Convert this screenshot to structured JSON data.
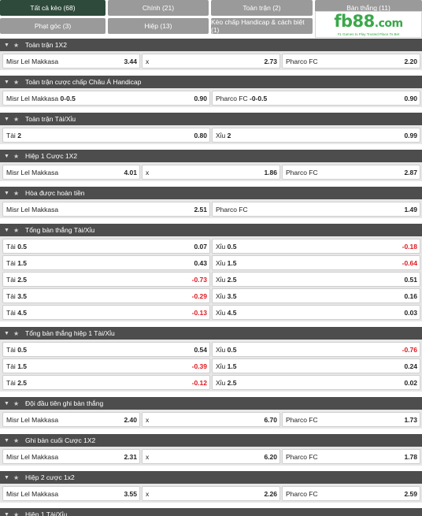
{
  "tabs": {
    "row1": [
      "Tất cả kèo (68)",
      "Chính (21)",
      "Toàn trận (2)",
      "Bàn thắng (11)"
    ],
    "row2": [
      "Phạt góc (3)",
      "Hiệp (13)",
      "Kèo chấp Handicap & cách biệt (1)"
    ]
  },
  "logo": {
    "text": "fb88",
    "suffix": ".com",
    "tagline": "#1 Games to Play  Trusted Place To Bet"
  },
  "markets": [
    {
      "title": "Toàn trận 1X2",
      "rows": [
        [
          {
            "name": "Misr Lel Makkasa",
            "odds": "3.44"
          },
          {
            "name": "x",
            "odds": "2.73"
          },
          {
            "name": "Pharco FC",
            "odds": "2.20"
          }
        ]
      ]
    },
    {
      "title": "Toàn trận cược chấp Châu Á Handicap",
      "rows": [
        [
          {
            "name": "Misr Lel Makkasa",
            "line": "0-0.5",
            "odds": "0.90"
          },
          {
            "name": "Pharco FC",
            "line": "-0-0.5",
            "odds": "0.90"
          }
        ]
      ]
    },
    {
      "title": "Toàn trận Tài/Xỉu",
      "rows": [
        [
          {
            "name": "Tài",
            "line": "2",
            "odds": "0.80"
          },
          {
            "name": "Xỉu",
            "line": "2",
            "odds": "0.99"
          }
        ]
      ]
    },
    {
      "title": "Hiệp 1 Cược 1X2",
      "rows": [
        [
          {
            "name": "Misr Lel Makkasa",
            "odds": "4.01"
          },
          {
            "name": "x",
            "odds": "1.86"
          },
          {
            "name": "Pharco FC",
            "odds": "2.87"
          }
        ]
      ]
    },
    {
      "title": "Hòa được hoàn tiền",
      "rows": [
        [
          {
            "name": "Misr Lel Makkasa",
            "odds": "2.51"
          },
          {
            "name": "Pharco FC",
            "odds": "1.49"
          }
        ]
      ]
    },
    {
      "title": "Tổng bàn thắng Tài/Xỉu",
      "rows": [
        [
          {
            "name": "Tài",
            "line": "0.5",
            "odds": "0.07"
          },
          {
            "name": "Xỉu",
            "line": "0.5",
            "odds": "-0.18"
          }
        ],
        [
          {
            "name": "Tài",
            "line": "1.5",
            "odds": "0.43"
          },
          {
            "name": "Xỉu",
            "line": "1.5",
            "odds": "-0.64"
          }
        ],
        [
          {
            "name": "Tài",
            "line": "2.5",
            "odds": "-0.73"
          },
          {
            "name": "Xỉu",
            "line": "2.5",
            "odds": "0.51"
          }
        ],
        [
          {
            "name": "Tài",
            "line": "3.5",
            "odds": "-0.29"
          },
          {
            "name": "Xỉu",
            "line": "3.5",
            "odds": "0.16"
          }
        ],
        [
          {
            "name": "Tài",
            "line": "4.5",
            "odds": "-0.13"
          },
          {
            "name": "Xỉu",
            "line": "4.5",
            "odds": "0.03"
          }
        ]
      ]
    },
    {
      "title": "Tổng bàn thắng hiệp 1 Tài/Xỉu",
      "rows": [
        [
          {
            "name": "Tài",
            "line": "0.5",
            "odds": "0.54"
          },
          {
            "name": "Xỉu",
            "line": "0.5",
            "odds": "-0.76"
          }
        ],
        [
          {
            "name": "Tài",
            "line": "1.5",
            "odds": "-0.39"
          },
          {
            "name": "Xỉu",
            "line": "1.5",
            "odds": "0.24"
          }
        ],
        [
          {
            "name": "Tài",
            "line": "2.5",
            "odds": "-0.12"
          },
          {
            "name": "Xỉu",
            "line": "2.5",
            "odds": "0.02"
          }
        ]
      ]
    },
    {
      "title": "Đội đầu tiên ghi bàn thắng",
      "rows": [
        [
          {
            "name": "Misr Lel Makkasa",
            "odds": "2.40"
          },
          {
            "name": "x",
            "odds": "6.70"
          },
          {
            "name": "Pharco FC",
            "odds": "1.73"
          }
        ]
      ]
    },
    {
      "title": "Ghi bàn cuối Cược 1X2",
      "rows": [
        [
          {
            "name": "Misr Lel Makkasa",
            "odds": "2.31"
          },
          {
            "name": "x",
            "odds": "6.20"
          },
          {
            "name": "Pharco FC",
            "odds": "1.78"
          }
        ]
      ]
    },
    {
      "title": "Hiệp 2 cược 1x2",
      "rows": [
        [
          {
            "name": "Misr Lel Makkasa",
            "odds": "3.55"
          },
          {
            "name": "x",
            "odds": "2.26"
          },
          {
            "name": "Pharco FC",
            "odds": "2.59"
          }
        ]
      ]
    },
    {
      "title": "Hiệp 1 Tài/Xỉu",
      "rows": []
    }
  ],
  "colors": {
    "active_tab": "#2e4a3a",
    "tab": "#9a9a9a",
    "header": "#4d4d4d",
    "negative": "#e0161d",
    "brand": "#3aa84a"
  },
  "icons": {
    "collapse": "chevron-down-icon",
    "favorite": "star-icon"
  }
}
